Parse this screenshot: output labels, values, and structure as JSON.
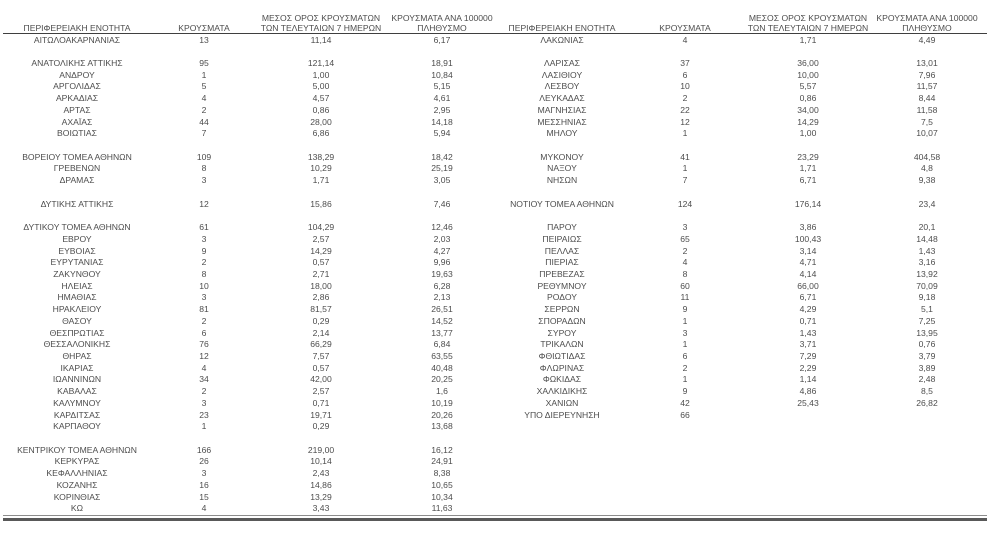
{
  "colors": {
    "text": "#4d4d4d",
    "header_line": "#3f3f3f",
    "bottom_line": "#595959"
  },
  "table": {
    "headers": {
      "region": "ΠΕΡΙΦΕΡΕΙΑΚΗ ΕΝΟΤΗΤΑ",
      "cases": "ΚΡΟΥΣΜΑΤΑ",
      "avg7_line1": "ΜΕΣΟΣ ΟΡΟΣ ΚΡΟΥΣΜΑΤΩΝ",
      "avg7_line2": "ΤΩΝ ΤΕΛΕΥΤΑΙΩΝ 7 ΗΜΕΡΩΝ",
      "per100k_line1": "ΚΡΟΥΣΜΑΤΑ ΑΝΑ 100000",
      "per100k_line2": "ΠΛΗΘΥΣΜΟ"
    },
    "left_rows": [
      {
        "region": "ΑΙΤΩΛΟΑΚΑΡΝΑΝΙΑΣ",
        "cases": "13",
        "avg7": "11,14",
        "per100k": "6,17"
      },
      {
        "region": "",
        "cases": "",
        "avg7": "",
        "per100k": ""
      },
      {
        "region": "ΑΝΑΤΟΛΙΚΗΣ ΑΤΤΙΚΗΣ",
        "cases": "95",
        "avg7": "121,14",
        "per100k": "18,91"
      },
      {
        "region": "ΑΝΔΡΟΥ",
        "cases": "1",
        "avg7": "1,00",
        "per100k": "10,84"
      },
      {
        "region": "ΑΡΓΟΛΙΔΑΣ",
        "cases": "5",
        "avg7": "5,00",
        "per100k": "5,15"
      },
      {
        "region": "ΑΡΚΑΔΙΑΣ",
        "cases": "4",
        "avg7": "4,57",
        "per100k": "4,61"
      },
      {
        "region": "ΑΡΤΑΣ",
        "cases": "2",
        "avg7": "0,86",
        "per100k": "2,95"
      },
      {
        "region": "ΑΧΑΪΑΣ",
        "cases": "44",
        "avg7": "28,00",
        "per100k": "14,18"
      },
      {
        "region": "ΒΟΙΩΤΙΑΣ",
        "cases": "7",
        "avg7": "6,86",
        "per100k": "5,94"
      },
      {
        "region": "",
        "cases": "",
        "avg7": "",
        "per100k": ""
      },
      {
        "region": "ΒΟΡΕΙΟΥ ΤΟΜΕΑ ΑΘΗΝΩΝ",
        "cases": "109",
        "avg7": "138,29",
        "per100k": "18,42"
      },
      {
        "region": "ΓΡΕΒΕΝΩΝ",
        "cases": "8",
        "avg7": "10,29",
        "per100k": "25,19"
      },
      {
        "region": "ΔΡΑΜΑΣ",
        "cases": "3",
        "avg7": "1,71",
        "per100k": "3,05"
      },
      {
        "region": "",
        "cases": "",
        "avg7": "",
        "per100k": ""
      },
      {
        "region": "ΔΥΤΙΚΗΣ ΑΤΤΙΚΗΣ",
        "cases": "12",
        "avg7": "15,86",
        "per100k": "7,46"
      },
      {
        "region": "",
        "cases": "",
        "avg7": "",
        "per100k": ""
      },
      {
        "region": "ΔΥΤΙΚΟΥ ΤΟΜΕΑ ΑΘΗΝΩΝ",
        "cases": "61",
        "avg7": "104,29",
        "per100k": "12,46"
      },
      {
        "region": "ΕΒΡΟΥ",
        "cases": "3",
        "avg7": "2,57",
        "per100k": "2,03"
      },
      {
        "region": "ΕΥΒΟΙΑΣ",
        "cases": "9",
        "avg7": "14,29",
        "per100k": "4,27"
      },
      {
        "region": "ΕΥΡΥΤΑΝΙΑΣ",
        "cases": "2",
        "avg7": "0,57",
        "per100k": "9,96"
      },
      {
        "region": "ΖΑΚΥΝΘΟΥ",
        "cases": "8",
        "avg7": "2,71",
        "per100k": "19,63"
      },
      {
        "region": "ΗΛΕΙΑΣ",
        "cases": "10",
        "avg7": "18,00",
        "per100k": "6,28"
      },
      {
        "region": "ΗΜΑΘΙΑΣ",
        "cases": "3",
        "avg7": "2,86",
        "per100k": "2,13"
      },
      {
        "region": "ΗΡΑΚΛΕΙΟΥ",
        "cases": "81",
        "avg7": "81,57",
        "per100k": "26,51"
      },
      {
        "region": "ΘΑΣΟΥ",
        "cases": "2",
        "avg7": "0,29",
        "per100k": "14,52"
      },
      {
        "region": "ΘΕΣΠΡΩΤΙΑΣ",
        "cases": "6",
        "avg7": "2,14",
        "per100k": "13,77"
      },
      {
        "region": "ΘΕΣΣΑΛΟΝΙΚΗΣ",
        "cases": "76",
        "avg7": "66,29",
        "per100k": "6,84"
      },
      {
        "region": "ΘΗΡΑΣ",
        "cases": "12",
        "avg7": "7,57",
        "per100k": "63,55"
      },
      {
        "region": "ΙΚΑΡΙΑΣ",
        "cases": "4",
        "avg7": "0,57",
        "per100k": "40,48"
      },
      {
        "region": "ΙΩΑΝΝΙΝΩΝ",
        "cases": "34",
        "avg7": "42,00",
        "per100k": "20,25"
      },
      {
        "region": "ΚΑΒΑΛΑΣ",
        "cases": "2",
        "avg7": "2,57",
        "per100k": "1,6"
      },
      {
        "region": "ΚΑΛΥΜΝΟΥ",
        "cases": "3",
        "avg7": "0,71",
        "per100k": "10,19"
      },
      {
        "region": "ΚΑΡΔΙΤΣΑΣ",
        "cases": "23",
        "avg7": "19,71",
        "per100k": "20,26"
      },
      {
        "region": "ΚΑΡΠΑΘΟΥ",
        "cases": "1",
        "avg7": "0,29",
        "per100k": "13,68"
      },
      {
        "region": "",
        "cases": "",
        "avg7": "",
        "per100k": ""
      },
      {
        "region": "ΚΕΝΤΡΙΚΟΥ ΤΟΜΕΑ ΑΘΗΝΩΝ",
        "cases": "166",
        "avg7": "219,00",
        "per100k": "16,12"
      },
      {
        "region": "ΚΕΡΚΥΡΑΣ",
        "cases": "26",
        "avg7": "10,14",
        "per100k": "24,91"
      },
      {
        "region": "ΚΕΦΑΛΛΗΝΙΑΣ",
        "cases": "3",
        "avg7": "2,43",
        "per100k": "8,38"
      },
      {
        "region": "ΚΟΖΑΝΗΣ",
        "cases": "16",
        "avg7": "14,86",
        "per100k": "10,65"
      },
      {
        "region": "ΚΟΡΙΝΘΙΑΣ",
        "cases": "15",
        "avg7": "13,29",
        "per100k": "10,34"
      },
      {
        "region": "ΚΩ",
        "cases": "4",
        "avg7": "3,43",
        "per100k": "11,63"
      }
    ],
    "right_rows": [
      {
        "region": "ΛΑΚΩΝΙΑΣ",
        "cases": "4",
        "avg7": "1,71",
        "per100k": "4,49"
      },
      {
        "region": "",
        "cases": "",
        "avg7": "",
        "per100k": ""
      },
      {
        "region": "ΛΑΡΙΣΑΣ",
        "cases": "37",
        "avg7": "36,00",
        "per100k": "13,01"
      },
      {
        "region": "ΛΑΣΙΘΙΟΥ",
        "cases": "6",
        "avg7": "10,00",
        "per100k": "7,96"
      },
      {
        "region": "ΛΕΣΒΟΥ",
        "cases": "10",
        "avg7": "5,57",
        "per100k": "11,57"
      },
      {
        "region": "ΛΕΥΚΑΔΑΣ",
        "cases": "2",
        "avg7": "0,86",
        "per100k": "8,44"
      },
      {
        "region": "ΜΑΓΝΗΣΙΑΣ",
        "cases": "22",
        "avg7": "34,00",
        "per100k": "11,58"
      },
      {
        "region": "ΜΕΣΣΗΝΙΑΣ",
        "cases": "12",
        "avg7": "14,29",
        "per100k": "7,5"
      },
      {
        "region": "ΜΗΛΟΥ",
        "cases": "1",
        "avg7": "1,00",
        "per100k": "10,07"
      },
      {
        "region": "",
        "cases": "",
        "avg7": "",
        "per100k": ""
      },
      {
        "region": "ΜΥΚΟΝΟΥ",
        "cases": "41",
        "avg7": "23,29",
        "per100k": "404,58"
      },
      {
        "region": "ΝΑΞΟΥ",
        "cases": "1",
        "avg7": "1,71",
        "per100k": "4,8"
      },
      {
        "region": "ΝΗΣΩΝ",
        "cases": "7",
        "avg7": "6,71",
        "per100k": "9,38"
      },
      {
        "region": "",
        "cases": "",
        "avg7": "",
        "per100k": ""
      },
      {
        "region": "ΝΟΤΙΟΥ ΤΟΜΕΑ ΑΘΗΝΩΝ",
        "cases": "124",
        "avg7": "176,14",
        "per100k": "23,4"
      },
      {
        "region": "",
        "cases": "",
        "avg7": "",
        "per100k": ""
      },
      {
        "region": "ΠΑΡΟΥ",
        "cases": "3",
        "avg7": "3,86",
        "per100k": "20,1"
      },
      {
        "region": "ΠΕΙΡΑΙΩΣ",
        "cases": "65",
        "avg7": "100,43",
        "per100k": "14,48"
      },
      {
        "region": "ΠΕΛΛΑΣ",
        "cases": "2",
        "avg7": "3,14",
        "per100k": "1,43"
      },
      {
        "region": "ΠΙΕΡΙΑΣ",
        "cases": "4",
        "avg7": "4,71",
        "per100k": "3,16"
      },
      {
        "region": "ΠΡΕΒΕΖΑΣ",
        "cases": "8",
        "avg7": "4,14",
        "per100k": "13,92"
      },
      {
        "region": "ΡΕΘΥΜΝΟΥ",
        "cases": "60",
        "avg7": "66,00",
        "per100k": "70,09"
      },
      {
        "region": "ΡΟΔΟΥ",
        "cases": "11",
        "avg7": "6,71",
        "per100k": "9,18"
      },
      {
        "region": "ΣΕΡΡΩΝ",
        "cases": "9",
        "avg7": "4,29",
        "per100k": "5,1"
      },
      {
        "region": "ΣΠΟΡΑΔΩΝ",
        "cases": "1",
        "avg7": "0,71",
        "per100k": "7,25"
      },
      {
        "region": "ΣΥΡΟΥ",
        "cases": "3",
        "avg7": "1,43",
        "per100k": "13,95"
      },
      {
        "region": "ΤΡΙΚΑΛΩΝ",
        "cases": "1",
        "avg7": "3,71",
        "per100k": "0,76"
      },
      {
        "region": "ΦΘΙΩΤΙΔΑΣ",
        "cases": "6",
        "avg7": "7,29",
        "per100k": "3,79"
      },
      {
        "region": "ΦΛΩΡΙΝΑΣ",
        "cases": "2",
        "avg7": "2,29",
        "per100k": "3,89"
      },
      {
        "region": "ΦΩΚΙΔΑΣ",
        "cases": "1",
        "avg7": "1,14",
        "per100k": "2,48"
      },
      {
        "region": "ΧΑΛΚΙΔΙΚΗΣ",
        "cases": "9",
        "avg7": "4,86",
        "per100k": "8,5"
      },
      {
        "region": "ΧΑΝΙΩΝ",
        "cases": "42",
        "avg7": "25,43",
        "per100k": "26,82"
      },
      {
        "region": "ΥΠΟ ΔΙΕΡΕΥΝΗΣΗ",
        "cases": "66",
        "avg7": "",
        "per100k": ""
      }
    ]
  }
}
